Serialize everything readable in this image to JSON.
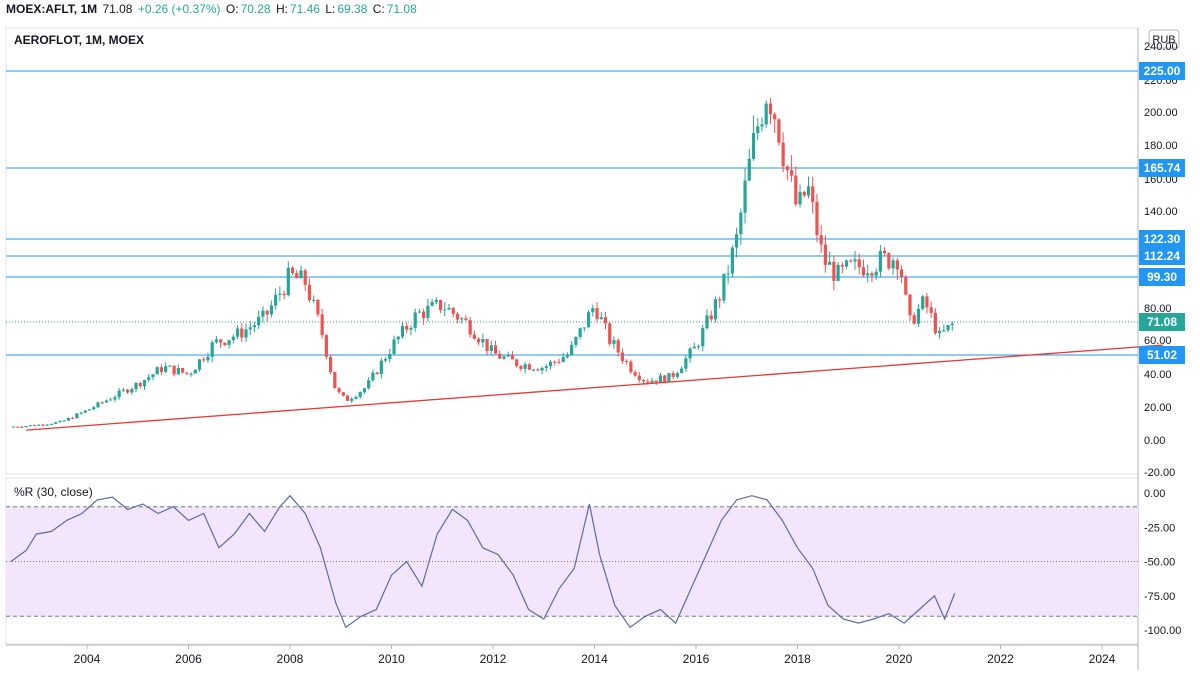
{
  "header": {
    "symbol": "MOEX:AFLT, 1M",
    "last": "71.08",
    "change": "+0.26 (+0.37%)",
    "o_label": "O:",
    "o_val": "70.28",
    "h_label": "H:",
    "h_val": "71.46",
    "l_label": "L:",
    "l_val": "69.38",
    "c_label": "C:",
    "c_val": "71.08"
  },
  "main": {
    "legend": "AEROFLOT, 1M, MOEX",
    "currency_button": "RUB"
  },
  "indicator": {
    "legend": "%R (30, close)"
  },
  "colors": {
    "up": "#26a69a",
    "down": "#ef5350",
    "hline": "#2196f3",
    "trendline": "#e53935",
    "wpr_line": "#5b6ba8",
    "wpr_band": "#f3e5fb",
    "last_price": "#26a69a"
  },
  "chart_data": [
    {
      "type": "candlestick",
      "title": "AEROFLOT, 1M, MOEX",
      "currency": "RUB",
      "x_axis": {
        "ticks": [
          "2004",
          "2006",
          "2008",
          "2010",
          "2012",
          "2014",
          "2016",
          "2018",
          "2020",
          "2022",
          "2024"
        ],
        "range": [
          2002.5,
          2025.2
        ]
      },
      "y_axis": {
        "ticks": [
          -20,
          0,
          20,
          40,
          60,
          80,
          100,
          120,
          140,
          160,
          180,
          200,
          220,
          240
        ],
        "range": [
          -20,
          240
        ],
        "scale": "log-like price axis"
      },
      "horizontal_levels": [
        {
          "label": "225.00",
          "value": 225.0
        },
        {
          "label": "165.74",
          "value": 165.74
        },
        {
          "label": "122.30",
          "value": 122.3
        },
        {
          "label": "112.24",
          "value": 112.24
        },
        {
          "label": "99.30",
          "value": 99.3
        },
        {
          "label": "51.02",
          "value": 51.02
        }
      ],
      "last_price": {
        "label": "71.08",
        "value": 71.08
      },
      "trendline": {
        "from": {
          "x": 2002.8,
          "y": 6
        },
        "to": {
          "x": 2025.2,
          "y": 57
        }
      },
      "close_path": [
        [
          2002.5,
          8
        ],
        [
          2003,
          9
        ],
        [
          2003.5,
          11
        ],
        [
          2004,
          18
        ],
        [
          2004.5,
          26
        ],
        [
          2005,
          34
        ],
        [
          2005.5,
          44
        ],
        [
          2006,
          40
        ],
        [
          2006.5,
          58
        ],
        [
          2007,
          64
        ],
        [
          2007.5,
          74
        ],
        [
          2008,
          100
        ],
        [
          2008.3,
          96
        ],
        [
          2008.6,
          68
        ],
        [
          2008.9,
          30
        ],
        [
          2009.1,
          24
        ],
        [
          2009.5,
          32
        ],
        [
          2010,
          56
        ],
        [
          2010.5,
          76
        ],
        [
          2011,
          82
        ],
        [
          2011.5,
          70
        ],
        [
          2012,
          52
        ],
        [
          2012.5,
          46
        ],
        [
          2013,
          44
        ],
        [
          2013.5,
          52
        ],
        [
          2014,
          82
        ],
        [
          2014.3,
          60
        ],
        [
          2014.7,
          44
        ],
        [
          2015,
          36
        ],
        [
          2015.5,
          38
        ],
        [
          2016,
          56
        ],
        [
          2016.5,
          90
        ],
        [
          2016.8,
          122
        ],
        [
          2017,
          160
        ],
        [
          2017.2,
          190
        ],
        [
          2017.4,
          215
        ],
        [
          2017.6,
          195
        ],
        [
          2017.8,
          165
        ],
        [
          2018,
          140
        ],
        [
          2018.2,
          155
        ],
        [
          2018.5,
          110
        ],
        [
          2018.8,
          100
        ],
        [
          2019,
          104
        ],
        [
          2019.5,
          108
        ],
        [
          2020,
          112
        ],
        [
          2020.2,
          70
        ],
        [
          2020.5,
          84
        ],
        [
          2020.8,
          62
        ],
        [
          2021.1,
          71
        ]
      ]
    },
    {
      "type": "line",
      "title": "%R (30, close)",
      "y_axis": {
        "ticks": [
          0,
          -25,
          -50,
          -75,
          -100
        ],
        "range": [
          -105,
          3
        ]
      },
      "bands": [
        -10,
        -50,
        -90
      ],
      "x": [
        2002.5,
        2002.8,
        2003,
        2003.3,
        2003.6,
        2003.9,
        2004.2,
        2004.5,
        2004.8,
        2005.1,
        2005.4,
        2005.7,
        2006,
        2006.3,
        2006.6,
        2006.9,
        2007.2,
        2007.5,
        2007.8,
        2008,
        2008.3,
        2008.6,
        2008.9,
        2009.1,
        2009.4,
        2009.7,
        2010,
        2010.3,
        2010.6,
        2010.9,
        2011.2,
        2011.5,
        2011.8,
        2012.1,
        2012.4,
        2012.7,
        2013,
        2013.3,
        2013.6,
        2013.9,
        2014.1,
        2014.4,
        2014.7,
        2015,
        2015.3,
        2015.6,
        2015.9,
        2016.2,
        2016.5,
        2016.8,
        2017.1,
        2017.4,
        2017.7,
        2018,
        2018.3,
        2018.6,
        2018.9,
        2019.2,
        2019.5,
        2019.8,
        2020.1,
        2020.4,
        2020.7,
        2020.9,
        2021.1
      ],
      "values": [
        -50,
        -42,
        -30,
        -28,
        -20,
        -15,
        -5,
        -3,
        -12,
        -8,
        -15,
        -10,
        -20,
        -15,
        -40,
        -30,
        -15,
        -28,
        -10,
        -2,
        -15,
        -40,
        -80,
        -98,
        -90,
        -85,
        -60,
        -50,
        -68,
        -30,
        -12,
        -20,
        -40,
        -45,
        -60,
        -85,
        -92,
        -70,
        -55,
        -8,
        -45,
        -82,
        -98,
        -90,
        -85,
        -95,
        -70,
        -45,
        -20,
        -5,
        -2,
        -5,
        -20,
        -40,
        -55,
        -82,
        -92,
        -95,
        -92,
        -88,
        -95,
        -85,
        -75,
        -92,
        -73
      ]
    }
  ]
}
